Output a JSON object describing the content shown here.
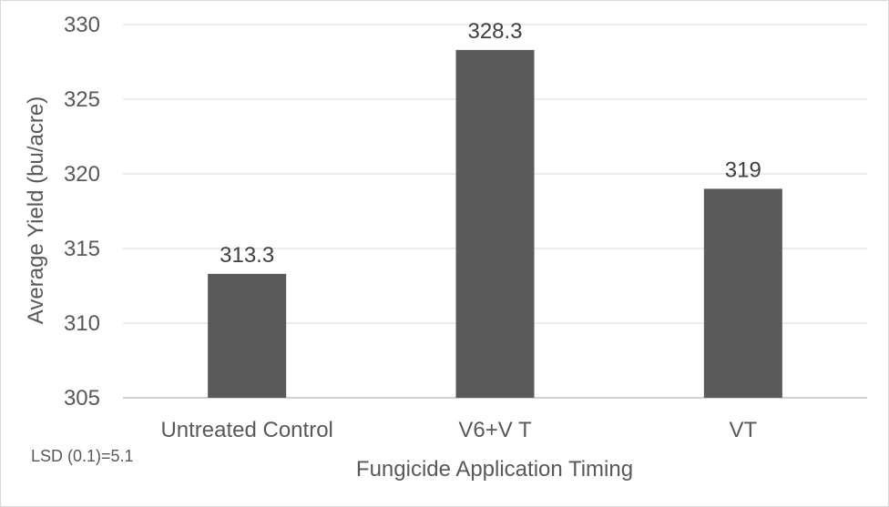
{
  "chart_data": {
    "type": "bar",
    "title": "",
    "xlabel": "Fungicide Application Timing",
    "ylabel": "Average Yield (bu/acre)",
    "categories": [
      "Untreated Control",
      "V6+V T",
      "VT"
    ],
    "values": [
      313.3,
      328.3,
      319
    ],
    "data_labels": [
      "313.3",
      "328.3",
      "319"
    ],
    "y_ticks": [
      305,
      310,
      315,
      320,
      325,
      330
    ],
    "ylim": [
      305,
      330
    ],
    "grid": true,
    "legend": "none",
    "annotation": "LSD (0.1)=5.1"
  },
  "colors": {
    "bar": "#5a5a5a",
    "gridline": "#d9d9d9",
    "baseline": "#bfbfbf",
    "text": "#595959",
    "background": "#ffffff"
  }
}
